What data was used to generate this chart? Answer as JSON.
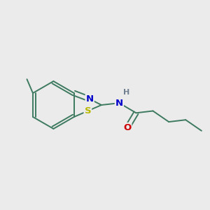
{
  "background_color": "#ebebeb",
  "bond_color": "#3d7a60",
  "atom_colors": {
    "S": "#b8b800",
    "N": "#0000cc",
    "O": "#cc0000",
    "H": "#708090"
  },
  "bond_width": 1.4,
  "figsize": [
    3.0,
    3.0
  ],
  "dpi": 100
}
